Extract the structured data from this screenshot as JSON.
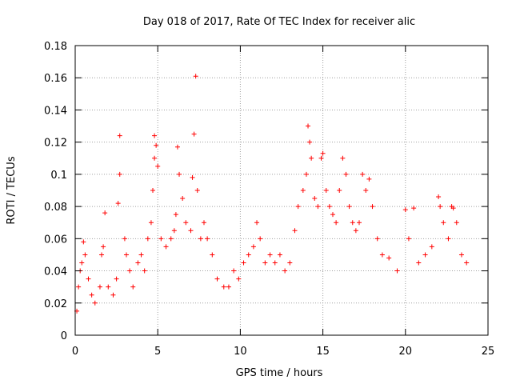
{
  "chart_data": {
    "type": "scatter",
    "title": "Day 018 of 2017, Rate Of TEC Index for receiver alic",
    "xlabel": "GPS time / hours",
    "ylabel": "ROTI / TECUs",
    "xlim": [
      0,
      25
    ],
    "ylim": [
      0,
      0.18
    ],
    "xticks": [
      0,
      5,
      10,
      15,
      20,
      25
    ],
    "xtick_labels": [
      "0",
      "5",
      "10",
      "15",
      "20",
      "25"
    ],
    "yticks": [
      0,
      0.02,
      0.04,
      0.06,
      0.08,
      0.1,
      0.12,
      0.14,
      0.16,
      0.18
    ],
    "ytick_labels": [
      "0",
      "0.02",
      "0.04",
      "0.06",
      "0.08",
      "0.1",
      "0.12",
      "0.14",
      "0.16",
      "0.18"
    ],
    "grid": true,
    "legend": "none",
    "marker": "+",
    "color": "#ff0000",
    "series": [
      {
        "values_note": "",
        "points": [
          [
            0.1,
            0.015
          ],
          [
            0.2,
            0.03
          ],
          [
            0.3,
            0.04
          ],
          [
            0.4,
            0.045
          ],
          [
            0.5,
            0.058
          ],
          [
            0.6,
            0.05
          ],
          [
            0.8,
            0.035
          ],
          [
            1.0,
            0.025
          ],
          [
            1.2,
            0.02
          ],
          [
            1.5,
            0.03
          ],
          [
            1.6,
            0.05
          ],
          [
            1.7,
            0.055
          ],
          [
            1.8,
            0.076
          ],
          [
            2.0,
            0.03
          ],
          [
            2.3,
            0.025
          ],
          [
            2.5,
            0.035
          ],
          [
            2.6,
            0.082
          ],
          [
            2.7,
            0.1
          ],
          [
            2.7,
            0.124
          ],
          [
            3.0,
            0.06
          ],
          [
            3.1,
            0.05
          ],
          [
            3.3,
            0.04
          ],
          [
            3.5,
            0.03
          ],
          [
            3.8,
            0.045
          ],
          [
            4.0,
            0.05
          ],
          [
            4.2,
            0.04
          ],
          [
            4.4,
            0.06
          ],
          [
            4.6,
            0.07
          ],
          [
            4.7,
            0.09
          ],
          [
            4.8,
            0.11
          ],
          [
            4.8,
            0.124
          ],
          [
            4.9,
            0.118
          ],
          [
            5.0,
            0.105
          ],
          [
            5.2,
            0.06
          ],
          [
            5.5,
            0.055
          ],
          [
            5.8,
            0.06
          ],
          [
            6.0,
            0.065
          ],
          [
            6.1,
            0.075
          ],
          [
            6.2,
            0.117
          ],
          [
            6.3,
            0.1
          ],
          [
            6.5,
            0.085
          ],
          [
            6.7,
            0.07
          ],
          [
            7.0,
            0.065
          ],
          [
            7.1,
            0.098
          ],
          [
            7.2,
            0.125
          ],
          [
            7.3,
            0.161
          ],
          [
            7.4,
            0.09
          ],
          [
            7.6,
            0.06
          ],
          [
            7.8,
            0.07
          ],
          [
            8.0,
            0.06
          ],
          [
            8.3,
            0.05
          ],
          [
            8.6,
            0.035
          ],
          [
            9.0,
            0.03
          ],
          [
            9.3,
            0.03
          ],
          [
            9.6,
            0.04
          ],
          [
            9.9,
            0.035
          ],
          [
            10.2,
            0.045
          ],
          [
            10.5,
            0.05
          ],
          [
            10.8,
            0.055
          ],
          [
            11.0,
            0.07
          ],
          [
            11.2,
            0.06
          ],
          [
            11.5,
            0.045
          ],
          [
            11.8,
            0.05
          ],
          [
            12.1,
            0.045
          ],
          [
            12.4,
            0.05
          ],
          [
            12.7,
            0.04
          ],
          [
            13.0,
            0.045
          ],
          [
            13.3,
            0.065
          ],
          [
            13.5,
            0.08
          ],
          [
            13.8,
            0.09
          ],
          [
            14.0,
            0.1
          ],
          [
            14.1,
            0.13
          ],
          [
            14.2,
            0.12
          ],
          [
            14.3,
            0.11
          ],
          [
            14.5,
            0.085
          ],
          [
            14.7,
            0.08
          ],
          [
            14.9,
            0.11
          ],
          [
            15.0,
            0.113
          ],
          [
            15.2,
            0.09
          ],
          [
            15.4,
            0.08
          ],
          [
            15.6,
            0.075
          ],
          [
            15.8,
            0.07
          ],
          [
            16.0,
            0.09
          ],
          [
            16.2,
            0.11
          ],
          [
            16.4,
            0.1
          ],
          [
            16.6,
            0.08
          ],
          [
            16.8,
            0.07
          ],
          [
            17.0,
            0.065
          ],
          [
            17.2,
            0.07
          ],
          [
            17.4,
            0.1
          ],
          [
            17.6,
            0.09
          ],
          [
            17.8,
            0.097
          ],
          [
            18.0,
            0.08
          ],
          [
            18.3,
            0.06
          ],
          [
            18.6,
            0.05
          ],
          [
            19.0,
            0.048
          ],
          [
            19.5,
            0.04
          ],
          [
            20.0,
            0.078
          ],
          [
            20.2,
            0.06
          ],
          [
            20.5,
            0.079
          ],
          [
            20.8,
            0.045
          ],
          [
            21.2,
            0.05
          ],
          [
            21.6,
            0.055
          ],
          [
            22.0,
            0.086
          ],
          [
            22.1,
            0.08
          ],
          [
            22.3,
            0.07
          ],
          [
            22.6,
            0.06
          ],
          [
            22.8,
            0.08
          ],
          [
            22.9,
            0.079
          ],
          [
            23.1,
            0.07
          ],
          [
            23.4,
            0.05
          ],
          [
            23.7,
            0.045
          ]
        ]
      }
    ]
  }
}
